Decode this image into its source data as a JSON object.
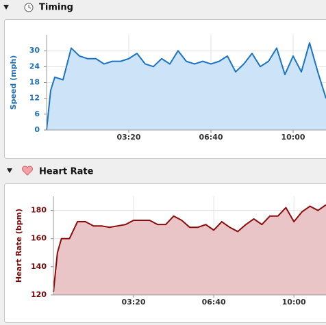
{
  "chart_data": [
    {
      "type": "area",
      "title": "Timing",
      "y_label": "Speed (mph)",
      "color": "#1a74c4",
      "fill_color": "#cde3f8",
      "tick_color": "#1f6fb5",
      "x": [
        0,
        10,
        20,
        40,
        50,
        60,
        80,
        100,
        120,
        140,
        160,
        180,
        200,
        220,
        240,
        260,
        280,
        300,
        320,
        340,
        360,
        380,
        400,
        420,
        440,
        460,
        480,
        500,
        520,
        540,
        560,
        580,
        600,
        620,
        640,
        660,
        680
      ],
      "values": [
        0,
        15,
        20,
        19,
        25,
        31,
        28,
        27,
        27,
        25,
        26,
        26,
        27,
        29,
        25,
        24,
        27,
        25,
        30,
        26,
        25,
        26,
        25,
        26,
        28,
        22,
        25,
        29,
        24,
        26,
        31,
        21,
        28,
        22,
        33,
        22,
        12
      ],
      "xlim": [
        0,
        680
      ],
      "xticks": [
        {
          "value": 200,
          "label": "03:20"
        },
        {
          "value": 400,
          "label": "06:40"
        },
        {
          "value": 600,
          "label": "10:00"
        }
      ],
      "ylim": [
        0,
        36
      ],
      "yticks": [
        0,
        6,
        12,
        18,
        24,
        30
      ],
      "grid": true
    },
    {
      "type": "area",
      "title": "Heart Rate",
      "y_label": "Heart Rate (bpm)",
      "color": "#8b0a0a",
      "fill_color": "#e9c5c7",
      "tick_color": "#7a0a0a",
      "x": [
        0,
        10,
        20,
        40,
        60,
        80,
        100,
        120,
        140,
        160,
        180,
        200,
        220,
        240,
        260,
        280,
        300,
        320,
        340,
        360,
        380,
        400,
        420,
        440,
        460,
        480,
        500,
        520,
        540,
        560,
        580,
        600,
        620,
        640,
        660,
        680
      ],
      "values": [
        122,
        150,
        160,
        160,
        172,
        172,
        169,
        169,
        168,
        169,
        170,
        173,
        173,
        173,
        170,
        170,
        176,
        173,
        168,
        168,
        170,
        166,
        172,
        168,
        165,
        170,
        174,
        170,
        176,
        176,
        182,
        172,
        179,
        183,
        180,
        184
      ],
      "xlim": [
        0,
        680
      ],
      "xticks": [
        {
          "value": 200,
          "label": "03:20"
        },
        {
          "value": 400,
          "label": "06:40"
        },
        {
          "value": 600,
          "label": "10:00"
        }
      ],
      "ylim": [
        120,
        190
      ],
      "yticks": [
        120,
        140,
        160,
        180
      ],
      "grid": true
    }
  ]
}
